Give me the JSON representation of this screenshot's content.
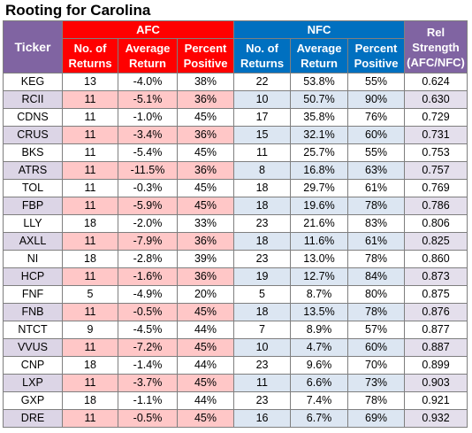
{
  "title": "Rooting for Carolina",
  "headers": {
    "ticker": "Ticker",
    "afc": "AFC",
    "nfc": "NFC",
    "rel_line1": "Rel",
    "rel_line2": "Strength",
    "rel_line3": "(AFC/NFC)",
    "returns_line1": "No. of",
    "returns_line2": "Returns",
    "avg_line1": "Average",
    "avg_line2": "Return",
    "pct_line1": "Percent",
    "pct_line2": "Positive"
  },
  "colors": {
    "afc_header": "#ff0000",
    "nfc_header": "#0070c0",
    "ticker_header": "#8064a2",
    "afc_band": "#ffc7c7",
    "nfc_band": "#dce6f2",
    "ticker_band": "#dcd5e6"
  },
  "rows": [
    {
      "ticker": "KEG",
      "afc_n": "13",
      "afc_avg": "-4.0%",
      "afc_pct": "38%",
      "nfc_n": "22",
      "nfc_avg": "53.8%",
      "nfc_pct": "55%",
      "rel": "0.624"
    },
    {
      "ticker": "RCII",
      "afc_n": "11",
      "afc_avg": "-5.1%",
      "afc_pct": "36%",
      "nfc_n": "10",
      "nfc_avg": "50.7%",
      "nfc_pct": "90%",
      "rel": "0.630"
    },
    {
      "ticker": "CDNS",
      "afc_n": "11",
      "afc_avg": "-1.0%",
      "afc_pct": "45%",
      "nfc_n": "17",
      "nfc_avg": "35.8%",
      "nfc_pct": "76%",
      "rel": "0.729"
    },
    {
      "ticker": "CRUS",
      "afc_n": "11",
      "afc_avg": "-3.4%",
      "afc_pct": "36%",
      "nfc_n": "15",
      "nfc_avg": "32.1%",
      "nfc_pct": "60%",
      "rel": "0.731"
    },
    {
      "ticker": "BKS",
      "afc_n": "11",
      "afc_avg": "-5.4%",
      "afc_pct": "45%",
      "nfc_n": "11",
      "nfc_avg": "25.7%",
      "nfc_pct": "55%",
      "rel": "0.753"
    },
    {
      "ticker": "ATRS",
      "afc_n": "11",
      "afc_avg": "-11.5%",
      "afc_pct": "36%",
      "nfc_n": "8",
      "nfc_avg": "16.8%",
      "nfc_pct": "63%",
      "rel": "0.757"
    },
    {
      "ticker": "TOL",
      "afc_n": "11",
      "afc_avg": "-0.3%",
      "afc_pct": "45%",
      "nfc_n": "18",
      "nfc_avg": "29.7%",
      "nfc_pct": "61%",
      "rel": "0.769"
    },
    {
      "ticker": "FBP",
      "afc_n": "11",
      "afc_avg": "-5.9%",
      "afc_pct": "45%",
      "nfc_n": "18",
      "nfc_avg": "19.6%",
      "nfc_pct": "78%",
      "rel": "0.786"
    },
    {
      "ticker": "LLY",
      "afc_n": "18",
      "afc_avg": "-2.0%",
      "afc_pct": "33%",
      "nfc_n": "23",
      "nfc_avg": "21.6%",
      "nfc_pct": "83%",
      "rel": "0.806"
    },
    {
      "ticker": "AXLL",
      "afc_n": "11",
      "afc_avg": "-7.9%",
      "afc_pct": "36%",
      "nfc_n": "18",
      "nfc_avg": "11.6%",
      "nfc_pct": "61%",
      "rel": "0.825"
    },
    {
      "ticker": "NI",
      "afc_n": "18",
      "afc_avg": "-2.8%",
      "afc_pct": "39%",
      "nfc_n": "23",
      "nfc_avg": "13.0%",
      "nfc_pct": "78%",
      "rel": "0.860"
    },
    {
      "ticker": "HCP",
      "afc_n": "11",
      "afc_avg": "-1.6%",
      "afc_pct": "36%",
      "nfc_n": "19",
      "nfc_avg": "12.7%",
      "nfc_pct": "84%",
      "rel": "0.873"
    },
    {
      "ticker": "FNF",
      "afc_n": "5",
      "afc_avg": "-4.9%",
      "afc_pct": "20%",
      "nfc_n": "5",
      "nfc_avg": "8.7%",
      "nfc_pct": "80%",
      "rel": "0.875"
    },
    {
      "ticker": "FNB",
      "afc_n": "11",
      "afc_avg": "-0.5%",
      "afc_pct": "45%",
      "nfc_n": "18",
      "nfc_avg": "13.5%",
      "nfc_pct": "78%",
      "rel": "0.876"
    },
    {
      "ticker": "NTCT",
      "afc_n": "9",
      "afc_avg": "-4.5%",
      "afc_pct": "44%",
      "nfc_n": "7",
      "nfc_avg": "8.9%",
      "nfc_pct": "57%",
      "rel": "0.877"
    },
    {
      "ticker": "VVUS",
      "afc_n": "11",
      "afc_avg": "-7.2%",
      "afc_pct": "45%",
      "nfc_n": "10",
      "nfc_avg": "4.7%",
      "nfc_pct": "60%",
      "rel": "0.887"
    },
    {
      "ticker": "CNP",
      "afc_n": "18",
      "afc_avg": "-1.4%",
      "afc_pct": "44%",
      "nfc_n": "23",
      "nfc_avg": "9.6%",
      "nfc_pct": "70%",
      "rel": "0.899"
    },
    {
      "ticker": "LXP",
      "afc_n": "11",
      "afc_avg": "-3.7%",
      "afc_pct": "45%",
      "nfc_n": "11",
      "nfc_avg": "6.6%",
      "nfc_pct": "73%",
      "rel": "0.903"
    },
    {
      "ticker": "GXP",
      "afc_n": "18",
      "afc_avg": "-1.1%",
      "afc_pct": "44%",
      "nfc_n": "23",
      "nfc_avg": "7.4%",
      "nfc_pct": "78%",
      "rel": "0.921"
    },
    {
      "ticker": "DRE",
      "afc_n": "11",
      "afc_avg": "-0.5%",
      "afc_pct": "45%",
      "nfc_n": "16",
      "nfc_avg": "6.7%",
      "nfc_pct": "69%",
      "rel": "0.932"
    }
  ]
}
